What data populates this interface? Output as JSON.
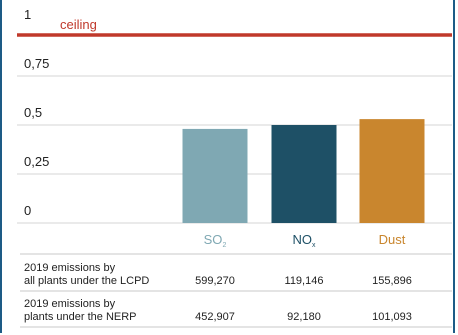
{
  "chart_data": {
    "type": "bar",
    "categories": [
      {
        "main": "SO",
        "sub": "2"
      },
      {
        "main": "NO",
        "sub": "x"
      },
      {
        "main": "Dust",
        "sub": ""
      }
    ],
    "values": [
      0.48,
      0.5,
      0.53
    ],
    "colors": [
      "#7fa8b3",
      "#1e5066",
      "#c9862e"
    ],
    "label_colors": [
      "#7fa8b3",
      "#1e5066",
      "#c9862e"
    ],
    "ylim": [
      0,
      1
    ],
    "yticks": [
      {
        "value": 0,
        "label": "0"
      },
      {
        "value": 0.25,
        "label": "0,25"
      },
      {
        "value": 0.5,
        "label": "0,5"
      },
      {
        "value": 0.75,
        "label": "0,75"
      },
      {
        "value": 1,
        "label": "1"
      }
    ],
    "grid": true,
    "ceiling": {
      "value": 1,
      "label": "ceiling",
      "color": "#c0392b"
    },
    "table": [
      {
        "label_lines": [
          "2019 emissions by",
          "all plants under the LCPD"
        ],
        "values": [
          "599,270",
          "119,146",
          "155,896"
        ]
      },
      {
        "label_lines": [
          "2019 emissions by",
          "plants under the NERP"
        ],
        "values": [
          "452,907",
          "92,180",
          "101,093"
        ]
      }
    ]
  }
}
